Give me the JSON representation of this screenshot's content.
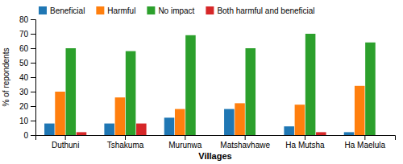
{
  "chart_data": {
    "type": "bar",
    "xlabel": "Villages",
    "ylabel": "% of repondents",
    "categories": [
      "Duthuni",
      "Tshakuma",
      "Murunwa",
      "Matshavhawe",
      "Ha Mutsha",
      "Ha Maelula"
    ],
    "series": [
      {
        "name": "Beneficial",
        "values": [
          8,
          8,
          12,
          18,
          6,
          2
        ]
      },
      {
        "name": "Harmful",
        "values": [
          30,
          26,
          18,
          22,
          21,
          34
        ]
      },
      {
        "name": "No impact",
        "values": [
          60,
          58,
          69,
          60,
          70,
          64
        ]
      },
      {
        "name": "Both harmful and beneficial",
        "values": [
          2,
          8,
          0,
          0,
          2,
          0
        ]
      }
    ],
    "ylim": [
      0,
      80
    ],
    "yticks": [
      0,
      10,
      20,
      30,
      40,
      50,
      60,
      70,
      80
    ],
    "grid": false,
    "legend": "top"
  }
}
